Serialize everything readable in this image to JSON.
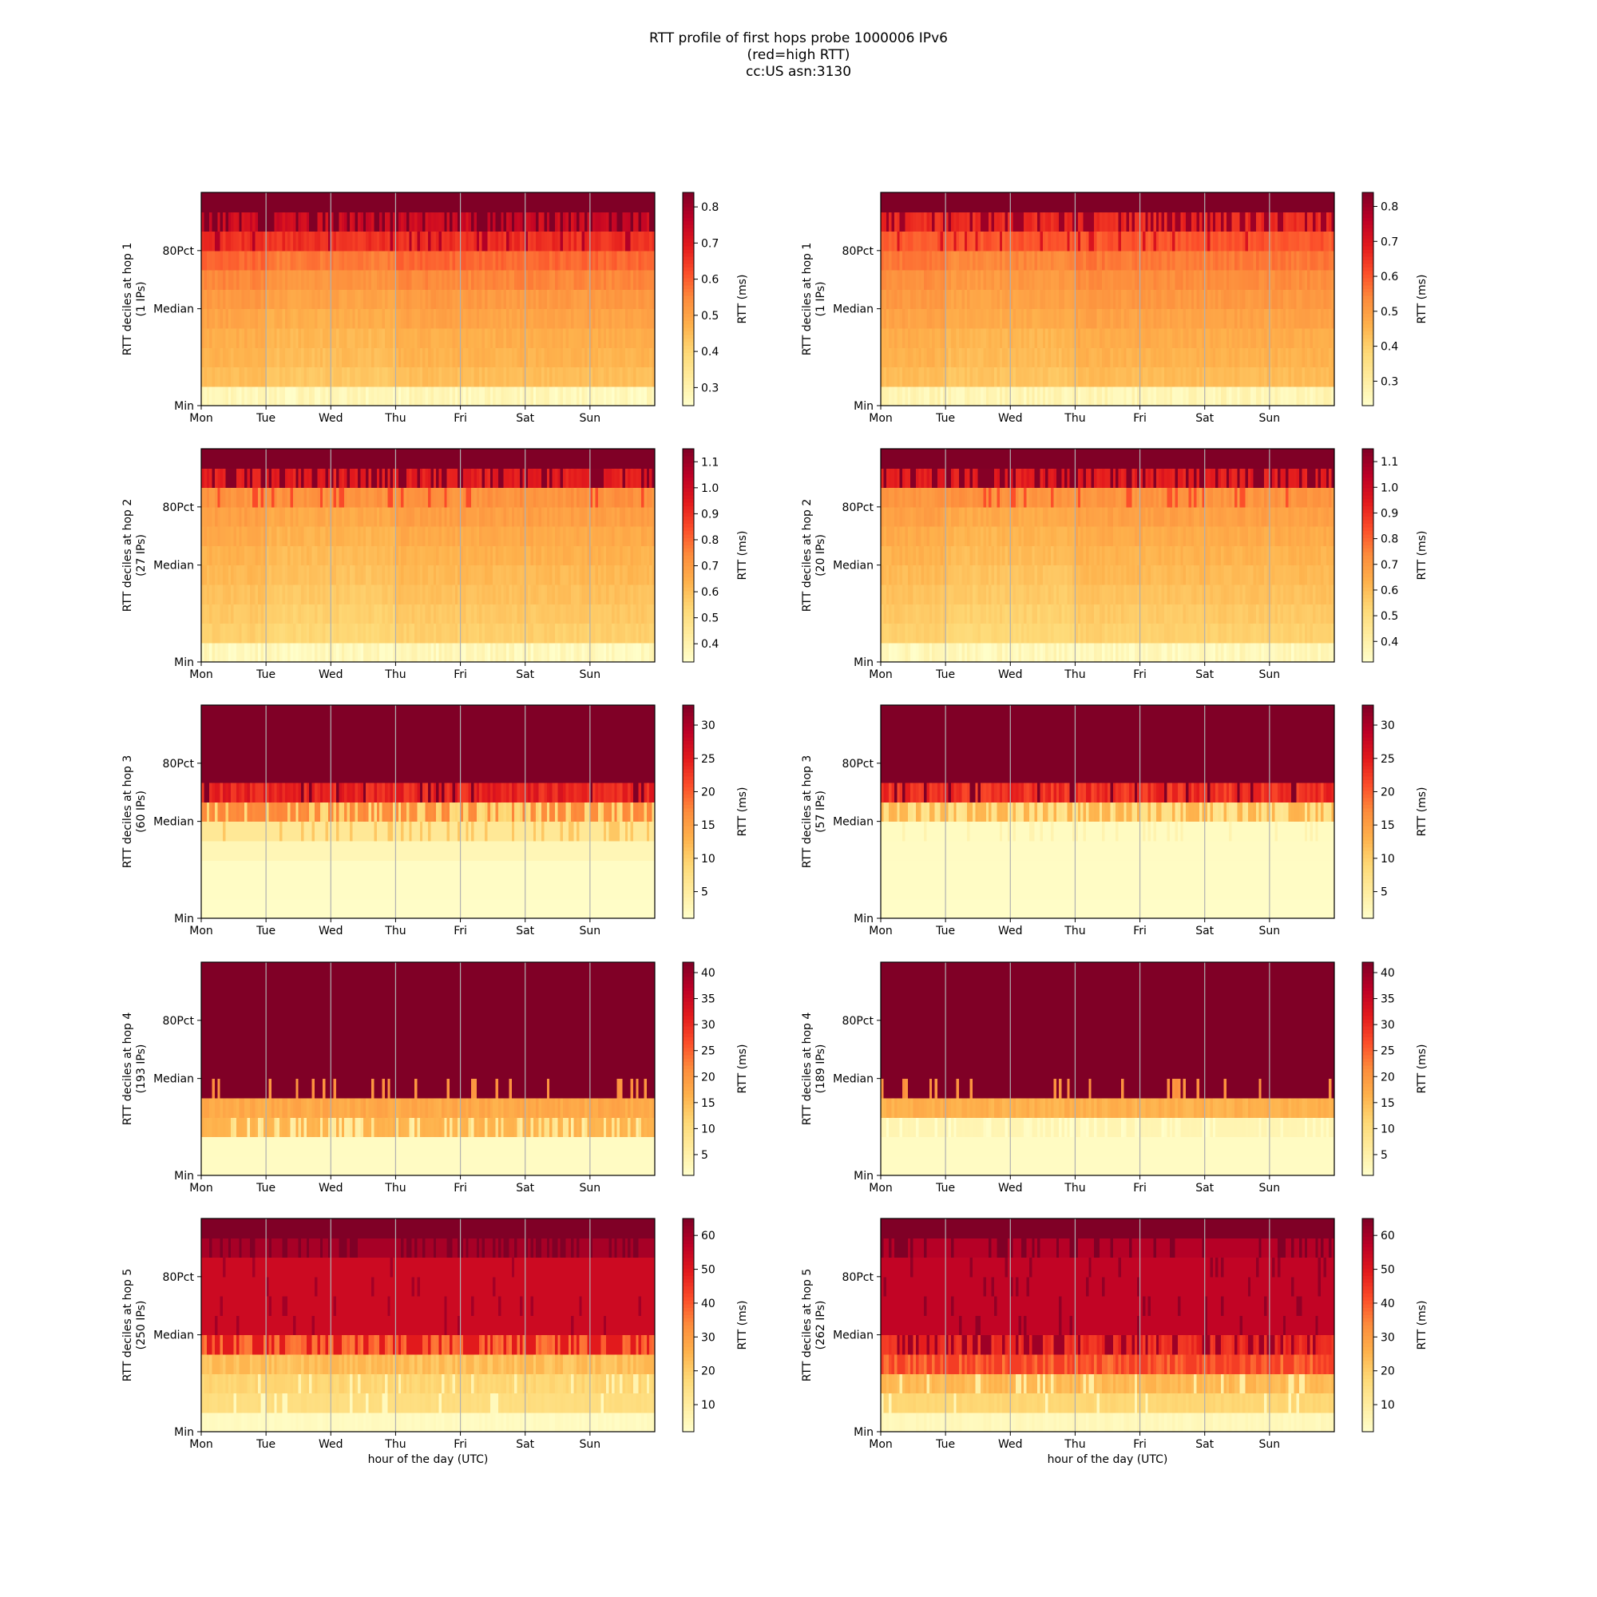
{
  "figure": {
    "title_lines": [
      "RTT profile of first hops probe 1000006 IPv6",
      "(red=high RTT)",
      "cc:US asn:3130"
    ]
  },
  "chart_data": [
    {
      "type": "heatmap",
      "column": "left",
      "hop": 1,
      "ylabel": [
        "RTT deciles at hop 1",
        "(1 IPs)"
      ],
      "xlabel": "",
      "x_ticks": [
        "Mon",
        "Tue",
        "Wed",
        "Thu",
        "Fri",
        "Sat",
        "Sun"
      ],
      "y_ticks": [
        "Min",
        "Median",
        "80Pct"
      ],
      "colorbar": {
        "label": "RTT (ms)",
        "range": [
          0.25,
          0.84
        ],
        "ticks": [
          0.3,
          0.4,
          0.5,
          0.6,
          0.7,
          0.8
        ],
        "tick_labels": [
          "0.3",
          "0.4",
          "0.5",
          "0.6",
          "0.7",
          "0.8"
        ]
      },
      "deciles": [
        0.28,
        0.45,
        0.47,
        0.48,
        0.5,
        0.52,
        0.55,
        0.59,
        0.66,
        0.74,
        0.84
      ],
      "profile": "hop12",
      "colormap": "YlOrRd",
      "grid": "vertical"
    },
    {
      "type": "heatmap",
      "column": "right",
      "hop": 1,
      "ylabel": [
        "RTT deciles at hop 1",
        "(1 IPs)"
      ],
      "xlabel": "",
      "x_ticks": [
        "Mon",
        "Tue",
        "Wed",
        "Thu",
        "Fri",
        "Sat",
        "Sun"
      ],
      "y_ticks": [
        "Min",
        "Median",
        "80Pct"
      ],
      "colorbar": {
        "label": "RTT (ms)",
        "range": [
          0.23,
          0.84
        ],
        "ticks": [
          0.3,
          0.4,
          0.5,
          0.6,
          0.7,
          0.8
        ],
        "tick_labels": [
          "0.3",
          "0.4",
          "0.5",
          "0.6",
          "0.7",
          "0.8"
        ]
      },
      "deciles": [
        0.27,
        0.44,
        0.46,
        0.47,
        0.49,
        0.51,
        0.53,
        0.56,
        0.6,
        0.67,
        0.84
      ],
      "profile": "hop12",
      "colormap": "YlOrRd",
      "grid": "vertical"
    },
    {
      "type": "heatmap",
      "column": "left",
      "hop": 2,
      "ylabel": [
        "RTT deciles at hop 2",
        "(27 IPs)"
      ],
      "xlabel": "",
      "x_ticks": [
        "Mon",
        "Tue",
        "Wed",
        "Thu",
        "Fri",
        "Sat",
        "Sun"
      ],
      "y_ticks": [
        "Min",
        "Median",
        "80Pct"
      ],
      "colorbar": {
        "label": "RTT (ms)",
        "range": [
          0.33,
          1.15
        ],
        "ticks": [
          0.4,
          0.5,
          0.6,
          0.7,
          0.8,
          0.9,
          1.0,
          1.1
        ],
        "tick_labels": [
          "0.4",
          "0.5",
          "0.6",
          "0.7",
          "0.8",
          "0.9",
          "1.0",
          "1.1"
        ]
      },
      "deciles": [
        0.37,
        0.56,
        0.58,
        0.6,
        0.62,
        0.64,
        0.66,
        0.69,
        0.72,
        0.95,
        1.15
      ],
      "profile": "hop12",
      "colormap": "YlOrRd",
      "grid": "vertical"
    },
    {
      "type": "heatmap",
      "column": "right",
      "hop": 2,
      "ylabel": [
        "RTT deciles at hop 2",
        "(20 IPs)"
      ],
      "xlabel": "",
      "x_ticks": [
        "Mon",
        "Tue",
        "Wed",
        "Thu",
        "Fri",
        "Sat",
        "Sun"
      ],
      "y_ticks": [
        "Min",
        "Median",
        "80Pct"
      ],
      "colorbar": {
        "label": "RTT (ms)",
        "range": [
          0.32,
          1.15
        ],
        "ticks": [
          0.4,
          0.5,
          0.6,
          0.7,
          0.8,
          0.9,
          1.0,
          1.1
        ],
        "tick_labels": [
          "0.4",
          "0.5",
          "0.6",
          "0.7",
          "0.8",
          "0.9",
          "1.0",
          "1.1"
        ]
      },
      "deciles": [
        0.36,
        0.55,
        0.57,
        0.59,
        0.61,
        0.63,
        0.65,
        0.68,
        0.71,
        0.95,
        1.15
      ],
      "profile": "hop12",
      "colormap": "YlOrRd",
      "grid": "vertical"
    },
    {
      "type": "heatmap",
      "column": "left",
      "hop": 3,
      "ylabel": [
        "RTT deciles at hop 3",
        "(60 IPs)"
      ],
      "xlabel": "",
      "x_ticks": [
        "Mon",
        "Tue",
        "Wed",
        "Thu",
        "Fri",
        "Sat",
        "Sun"
      ],
      "y_ticks": [
        "Min",
        "Median",
        "80Pct"
      ],
      "colorbar": {
        "label": "RTT (ms)",
        "range": [
          1,
          33
        ],
        "ticks": [
          5,
          10,
          15,
          20,
          25,
          30
        ],
        "tick_labels": [
          "5",
          "10",
          "15",
          "20",
          "25",
          "30"
        ]
      },
      "deciles": [
        1.5,
        1.6,
        1.7,
        3,
        6,
        16,
        24,
        33,
        33,
        33,
        33
      ],
      "profile": "hop3",
      "colormap": "YlOrRd",
      "grid": "vertical"
    },
    {
      "type": "heatmap",
      "column": "right",
      "hop": 3,
      "ylabel": [
        "RTT deciles at hop 3",
        "(57 IPs)"
      ],
      "xlabel": "",
      "x_ticks": [
        "Mon",
        "Tue",
        "Wed",
        "Thu",
        "Fri",
        "Sat",
        "Sun"
      ],
      "y_ticks": [
        "Min",
        "Median",
        "80Pct"
      ],
      "colorbar": {
        "label": "RTT (ms)",
        "range": [
          1,
          33
        ],
        "ticks": [
          5,
          10,
          15,
          20,
          25,
          30
        ],
        "tick_labels": [
          "5",
          "10",
          "15",
          "20",
          "25",
          "30"
        ]
      },
      "deciles": [
        1.5,
        1.6,
        1.7,
        1.8,
        2,
        12,
        23,
        33,
        33,
        33,
        33
      ],
      "profile": "hop3",
      "colormap": "YlOrRd",
      "grid": "vertical"
    },
    {
      "type": "heatmap",
      "column": "left",
      "hop": 4,
      "ylabel": [
        "RTT deciles at hop 4",
        "(193 IPs)"
      ],
      "xlabel": "",
      "x_ticks": [
        "Mon",
        "Tue",
        "Wed",
        "Thu",
        "Fri",
        "Sat",
        "Sun"
      ],
      "y_ticks": [
        "Min",
        "Median",
        "80Pct"
      ],
      "colorbar": {
        "label": "RTT (ms)",
        "range": [
          1,
          42
        ],
        "ticks": [
          5,
          10,
          15,
          20,
          25,
          30,
          35,
          40
        ],
        "tick_labels": [
          "5",
          "10",
          "15",
          "20",
          "25",
          "30",
          "35",
          "40"
        ]
      },
      "deciles": [
        2,
        2.2,
        16,
        18,
        42,
        42,
        42,
        42,
        42,
        42,
        42
      ],
      "profile": "hop4",
      "colormap": "YlOrRd",
      "grid": "vertical"
    },
    {
      "type": "heatmap",
      "column": "right",
      "hop": 4,
      "ylabel": [
        "RTT deciles at hop 4",
        "(189 IPs)"
      ],
      "xlabel": "",
      "x_ticks": [
        "Mon",
        "Tue",
        "Wed",
        "Thu",
        "Fri",
        "Sat",
        "Sun"
      ],
      "y_ticks": [
        "Min",
        "Median",
        "80Pct"
      ],
      "colorbar": {
        "label": "RTT (ms)",
        "range": [
          1,
          42
        ],
        "ticks": [
          5,
          10,
          15,
          20,
          25,
          30,
          35,
          40
        ],
        "tick_labels": [
          "5",
          "10",
          "15",
          "20",
          "25",
          "30",
          "35",
          "40"
        ]
      },
      "deciles": [
        2,
        2.2,
        4,
        17,
        42,
        42,
        42,
        42,
        42,
        42,
        42
      ],
      "profile": "hop4",
      "colormap": "YlOrRd",
      "grid": "vertical"
    },
    {
      "type": "heatmap",
      "column": "left",
      "hop": 5,
      "ylabel": [
        "RTT deciles at hop 5",
        "(250 IPs)"
      ],
      "xlabel": "hour of the day (UTC)",
      "x_ticks": [
        "Mon",
        "Tue",
        "Wed",
        "Thu",
        "Fri",
        "Sat",
        "Sun"
      ],
      "y_ticks": [
        "Min",
        "Median",
        "80Pct"
      ],
      "colorbar": {
        "label": "RTT (ms)",
        "range": [
          2,
          65
        ],
        "ticks": [
          10,
          20,
          30,
          40,
          50,
          60
        ],
        "tick_labels": [
          "10",
          "20",
          "30",
          "40",
          "50",
          "60"
        ]
      },
      "deciles": [
        4,
        16,
        18,
        25,
        38,
        54,
        54,
        54,
        54,
        60,
        65
      ],
      "profile": "hop5",
      "colormap": "YlOrRd",
      "grid": "vertical"
    },
    {
      "type": "heatmap",
      "column": "right",
      "hop": 5,
      "ylabel": [
        "RTT deciles at hop 5",
        "(262 IPs)"
      ],
      "xlabel": "hour of the day (UTC)",
      "x_ticks": [
        "Mon",
        "Tue",
        "Wed",
        "Thu",
        "Fri",
        "Sat",
        "Sun"
      ],
      "y_ticks": [
        "Min",
        "Median",
        "80Pct"
      ],
      "colorbar": {
        "label": "RTT (ms)",
        "range": [
          2,
          65
        ],
        "ticks": [
          10,
          20,
          30,
          40,
          50,
          60
        ],
        "tick_labels": [
          "10",
          "20",
          "30",
          "40",
          "50",
          "60"
        ]
      },
      "deciles": [
        5,
        18,
        24,
        44,
        47,
        56,
        56,
        56,
        56,
        58,
        65
      ],
      "profile": "hop5",
      "colormap": "YlOrRd",
      "grid": "vertical"
    }
  ]
}
